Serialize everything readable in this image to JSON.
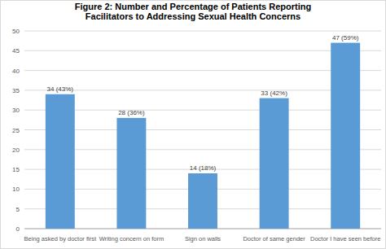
{
  "chart_data": {
    "type": "bar",
    "title": "Figure 2: Number and Percentage of Patients Reporting\nFacilitators to Addressing Sexual Health Concerns",
    "categories": [
      "Being asked by doctor first",
      "Writing concern on form",
      "Sign on walls",
      "Doctor of same gender",
      "Doctor I have seen before"
    ],
    "values": [
      34,
      28,
      14,
      33,
      47
    ],
    "value_labels": [
      "34 (43%)",
      "28 (36%)",
      "14 (18%)",
      "33 (42%)",
      "47 (59%)"
    ],
    "color": "#5b9bd5",
    "ylim": [
      0,
      50
    ],
    "yticks": [
      0,
      5,
      10,
      15,
      20,
      25,
      30,
      35,
      40,
      45,
      50
    ],
    "grid": true,
    "data_labels": true
  }
}
